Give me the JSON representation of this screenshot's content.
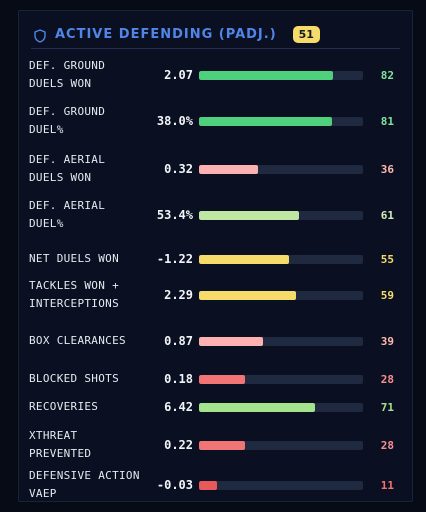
{
  "header": {
    "title": "ACTIVE DEFENDING (PADJ.)",
    "score": "51",
    "icon": "shield-icon",
    "accent_color": "#4f86e8",
    "badge_color": "#f5dc6a"
  },
  "colors": {
    "high": "#4ed07c",
    "mid_high": "#a4e28e",
    "mid": "#f5dc6a",
    "low_mid": "#ffb0b0",
    "low": "#f27575"
  },
  "metrics": [
    {
      "label": "DEF. GROUND DUELS WON",
      "value": "2.07",
      "percentile": 82,
      "percentile_text": "82",
      "color": "#4ed07c",
      "text_color": "#7fe39f"
    },
    {
      "label": "DEF. GROUND DUEL%",
      "value": "38.0%",
      "percentile": 81,
      "percentile_text": "81",
      "color": "#4ed07c",
      "text_color": "#7fe39f"
    },
    {
      "label": "DEF. AERIAL DUELS WON",
      "value": "0.32",
      "percentile": 36,
      "percentile_text": "36",
      "color": "#ffb0b0",
      "text_color": "#ffb8b0"
    },
    {
      "label": "DEF. AERIAL DUEL%",
      "value": "53.4%",
      "percentile": 61,
      "percentile_text": "61",
      "color": "#bfe6a2",
      "text_color": "#d4efbb"
    },
    {
      "label": "NET DUELS WON",
      "value": "-1.22",
      "percentile": 55,
      "percentile_text": "55",
      "color": "#f5dc6a",
      "text_color": "#f5dc6a"
    },
    {
      "label": "TACKLES WON + INTERCEPTIONS",
      "value": "2.29",
      "percentile": 59,
      "percentile_text": "59",
      "color": "#f5dc6a",
      "text_color": "#f5dc6a"
    },
    {
      "label": "BOX CLEARANCES",
      "value": "0.87",
      "percentile": 39,
      "percentile_text": "39",
      "color": "#ffb0b0",
      "text_color": "#ffb8b0"
    },
    {
      "label": "BLOCKED SHOTS",
      "value": "0.18",
      "percentile": 28,
      "percentile_text": "28",
      "color": "#f27575",
      "text_color": "#f59090"
    },
    {
      "label": "RECOVERIES",
      "value": "6.42",
      "percentile": 71,
      "percentile_text": "71",
      "color": "#a4e28e",
      "text_color": "#a4e28e"
    },
    {
      "label": "XTHREAT PREVENTED",
      "value": "0.22",
      "percentile": 28,
      "percentile_text": "28",
      "color": "#f27575",
      "text_color": "#f59090"
    },
    {
      "label": "DEFENSIVE ACTION VAEP",
      "value": "-0.03",
      "percentile": 11,
      "percentile_text": "11",
      "color": "#e85a5a",
      "text_color": "#f27575"
    }
  ]
}
